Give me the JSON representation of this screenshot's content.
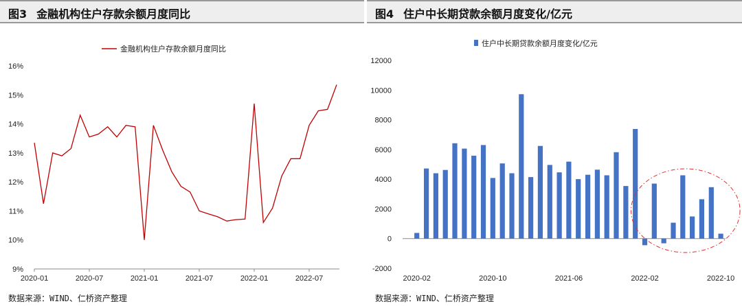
{
  "left": {
    "fig_no": "图3",
    "title": "金融机构住户存款余额月度同比",
    "source": "数据来源：WIND、仁桥资产整理",
    "chart_data": {
      "type": "line",
      "series": [
        {
          "name": "金融机构住户存款余额月度同比",
          "color": "#c00000",
          "values": [
            13.35,
            11.25,
            13.0,
            12.9,
            13.15,
            14.3,
            13.55,
            13.65,
            13.9,
            13.55,
            13.95,
            13.9,
            10.0,
            13.95,
            13.1,
            12.35,
            11.85,
            11.65,
            11.0,
            10.9,
            10.8,
            10.65,
            10.7,
            10.72,
            14.7,
            10.6,
            11.1,
            12.2,
            12.8,
            12.8,
            13.95,
            14.45,
            14.5,
            15.35
          ]
        }
      ],
      "x_start": "2020-01",
      "x_tick_labels": [
        "2020-01",
        "2020-07",
        "2021-01",
        "2021-07",
        "2022-01",
        "2022-07"
      ],
      "y_tick_labels": [
        "9%",
        "10%",
        "11%",
        "12%",
        "13%",
        "14%",
        "15%",
        "16%"
      ],
      "ylim": [
        9,
        16
      ],
      "legend_position": "top-center",
      "grid": false
    }
  },
  "right": {
    "fig_no": "图4",
    "title": "住户中长期贷款余额月度变化/亿元",
    "source": "数据来源：WIND、仁桥资产整理",
    "chart_data": {
      "type": "bar",
      "series": [
        {
          "name": "住户中长期贷款余额月度变化/亿元",
          "color": "#4472c4",
          "values": [
            0,
            380,
            4720,
            4400,
            4620,
            6420,
            6060,
            5580,
            6300,
            4080,
            5060,
            4400,
            9720,
            4140,
            6240,
            4960,
            4460,
            5180,
            4000,
            4300,
            4640,
            4260,
            5820,
            3540,
            7380,
            -450,
            3700,
            -320,
            1070,
            4260,
            1490,
            2650,
            3460,
            330
          ]
        }
      ],
      "x_start": "2020-01",
      "x_tick_labels": [
        "2020-02",
        "2020-10",
        "2021-06",
        "2022-02",
        "2022-10"
      ],
      "y_tick_labels": [
        "-2000",
        "0",
        "2000",
        "4000",
        "6000",
        "8000",
        "10000",
        "12000"
      ],
      "ylim": [
        -2000,
        12000
      ],
      "legend_position": "top-center",
      "grid": false,
      "highlight_color": "#e03030"
    }
  }
}
